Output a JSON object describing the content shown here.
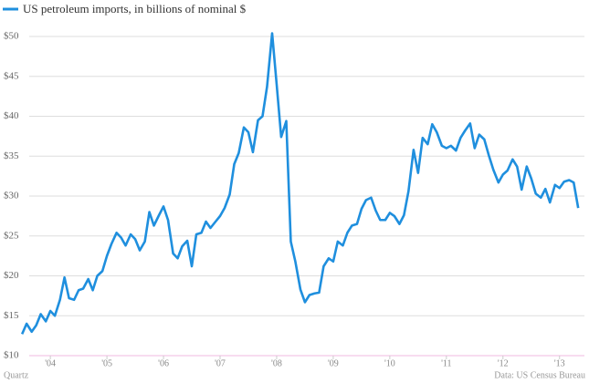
{
  "chart_data": {
    "type": "line",
    "series": [
      {
        "name": "US petroleum imports, in billions of nominal $",
        "color": "#1f8fde",
        "values": [
          12.7,
          14,
          13,
          13.8,
          15.2,
          14.3,
          15.6,
          15,
          17,
          19.8,
          17.2,
          17,
          18.2,
          18.4,
          19.6,
          18.2,
          20,
          20.6,
          22.5,
          24,
          25.4,
          24.8,
          23.8,
          25.2,
          24.6,
          23.2,
          24.3,
          28,
          26.3,
          27.6,
          28.7,
          27,
          22.8,
          22.2,
          23.7,
          24.4,
          21.2,
          25.2,
          25.4,
          26.8,
          26,
          26.8,
          27.5,
          28.5,
          30.2,
          34,
          35.4,
          38.6,
          38,
          35.5,
          39.5,
          40,
          43.7,
          50.4,
          44,
          37.4,
          39.4,
          24.3,
          21.8,
          18.3,
          16.7,
          17.6,
          17.8,
          17.9,
          21.2,
          22.2,
          21.8,
          24.3,
          23.8,
          25.4,
          26.3,
          26.5,
          28.4,
          29.5,
          29.8,
          28.2,
          27,
          27,
          27.9,
          27.5,
          26.5,
          27.6,
          30.6,
          35.8,
          32.9,
          37.3,
          36.5,
          39,
          38,
          36.3,
          36,
          36.3,
          35.7,
          37.3,
          38.2,
          39.1,
          36,
          37.7,
          37.1,
          35.1,
          33.3,
          31.7,
          32.7,
          33.2,
          34.6,
          33.7,
          30.8,
          33.7,
          32.2,
          30.3,
          29.8,
          30.9,
          29.2,
          31.4,
          31,
          31.8,
          32,
          31.7,
          28.5
        ]
      }
    ],
    "x": [
      2003.5,
      2003.58,
      2003.67,
      2003.75,
      2003.83,
      2003.92,
      2004,
      2004.08,
      2004.17,
      2004.25,
      2004.33,
      2004.42,
      2004.5,
      2004.58,
      2004.67,
      2004.75,
      2004.83,
      2004.92,
      2005,
      2005.08,
      2005.17,
      2005.25,
      2005.33,
      2005.42,
      2005.5,
      2005.58,
      2005.67,
      2005.75,
      2005.83,
      2005.92,
      2006,
      2006.08,
      2006.17,
      2006.25,
      2006.33,
      2006.42,
      2006.5,
      2006.58,
      2006.67,
      2006.75,
      2006.83,
      2006.92,
      2007,
      2007.08,
      2007.17,
      2007.25,
      2007.33,
      2007.42,
      2007.5,
      2007.58,
      2007.67,
      2007.75,
      2007.83,
      2007.92,
      2008,
      2008.08,
      2008.17,
      2008.25,
      2008.33,
      2008.42,
      2008.5,
      2008.58,
      2008.67,
      2008.75,
      2008.83,
      2008.92,
      2009,
      2009.08,
      2009.17,
      2009.25,
      2009.33,
      2009.42,
      2009.5,
      2009.58,
      2009.67,
      2009.75,
      2009.83,
      2009.92,
      2010,
      2010.08,
      2010.17,
      2010.25,
      2010.33,
      2010.42,
      2010.5,
      2010.58,
      2010.67,
      2010.75,
      2010.83,
      2010.92,
      2011,
      2011.08,
      2011.17,
      2011.25,
      2011.33,
      2011.42,
      2011.5,
      2011.58,
      2011.67,
      2011.75,
      2011.83,
      2011.92,
      2012,
      2012.08,
      2012.17,
      2012.25,
      2012.33,
      2012.42,
      2012.5,
      2012.58,
      2012.67,
      2012.75,
      2012.83,
      2012.92,
      2013,
      2013.08,
      2013.17,
      2013.25,
      2013.33
    ],
    "xlim": [
      2003.11,
      2013.44
    ],
    "xticks": [
      {
        "value": 2004,
        "label": "'04"
      },
      {
        "value": 2005,
        "label": "'05"
      },
      {
        "value": 2006,
        "label": "'06"
      },
      {
        "value": 2007,
        "label": "'07"
      },
      {
        "value": 2008,
        "label": "'08"
      },
      {
        "value": 2009,
        "label": "'09"
      },
      {
        "value": 2010,
        "label": "'10"
      },
      {
        "value": 2011,
        "label": "'11"
      },
      {
        "value": 2012,
        "label": "'12"
      },
      {
        "value": 2013,
        "label": "'13"
      }
    ],
    "ylim": [
      10,
      50
    ],
    "yticks": [
      {
        "value": 10,
        "label": "$10"
      },
      {
        "value": 15,
        "label": "$15"
      },
      {
        "value": 20,
        "label": "$20"
      },
      {
        "value": 25,
        "label": "$25"
      },
      {
        "value": 30,
        "label": "$30"
      },
      {
        "value": 35,
        "label": "$35"
      },
      {
        "value": 40,
        "label": "$40"
      },
      {
        "value": 45,
        "label": "$45"
      },
      {
        "value": 50,
        "label": "$50"
      }
    ],
    "grid": true,
    "source": "Data: US Census Bureau",
    "credit": "Quartz"
  }
}
